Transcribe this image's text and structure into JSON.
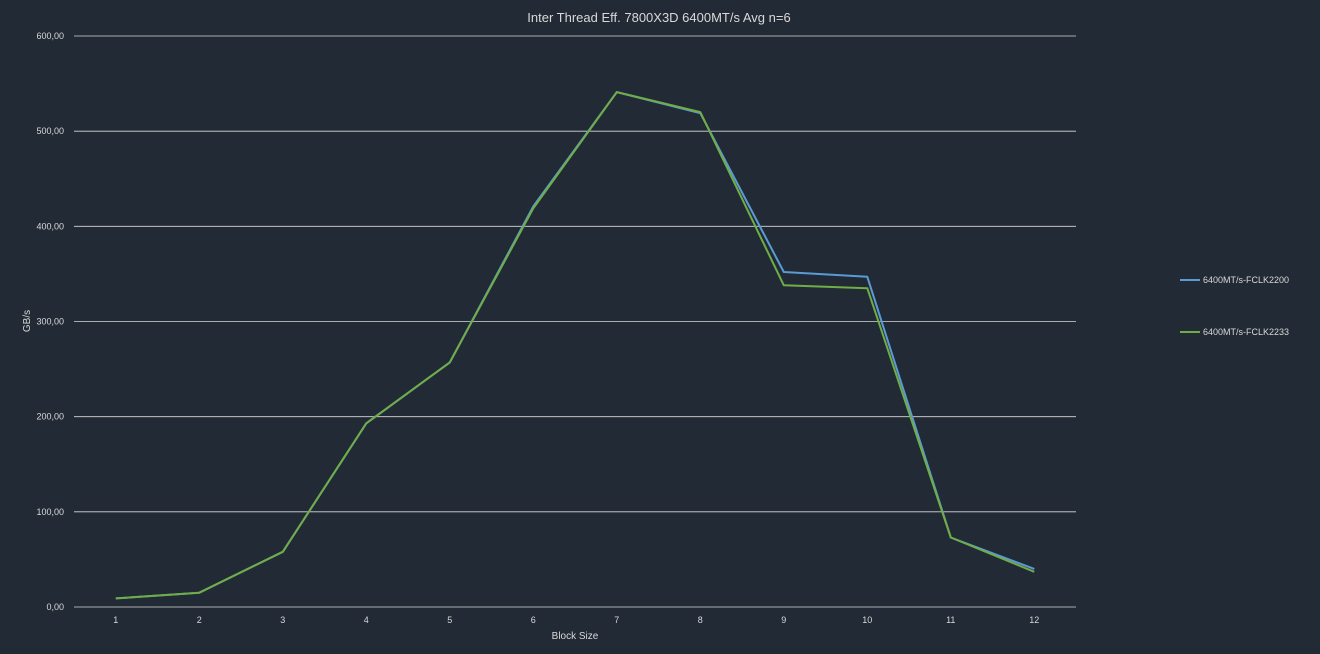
{
  "chart_data": {
    "type": "line",
    "title": "Inter Thread Eff. 7800X3D 6400MT/s Avg n=6",
    "xlabel": "Block Size",
    "ylabel": "GB/s",
    "categories": [
      "1",
      "2",
      "3",
      "4",
      "5",
      "6",
      "7",
      "8",
      "9",
      "10",
      "11",
      "12"
    ],
    "ylim": [
      0,
      600
    ],
    "yticks": [
      0,
      100,
      200,
      300,
      400,
      500,
      600
    ],
    "ytick_labels": [
      "0,00",
      "100,00",
      "200,00",
      "300,00",
      "400,00",
      "500,00",
      "600,00"
    ],
    "grid": true,
    "legend_position": "right",
    "series": [
      {
        "name": "6400MT/s-FCLK2200",
        "color": "#5b9bd5",
        "values": [
          9,
          15,
          58,
          193,
          257,
          421,
          541,
          519,
          352,
          347,
          73,
          40
        ]
      },
      {
        "name": "6400MT/s-FCLK2233",
        "color": "#70ad47",
        "values": [
          9,
          15,
          58,
          193,
          257,
          419,
          541,
          520,
          338,
          335,
          73,
          37
        ]
      }
    ]
  }
}
